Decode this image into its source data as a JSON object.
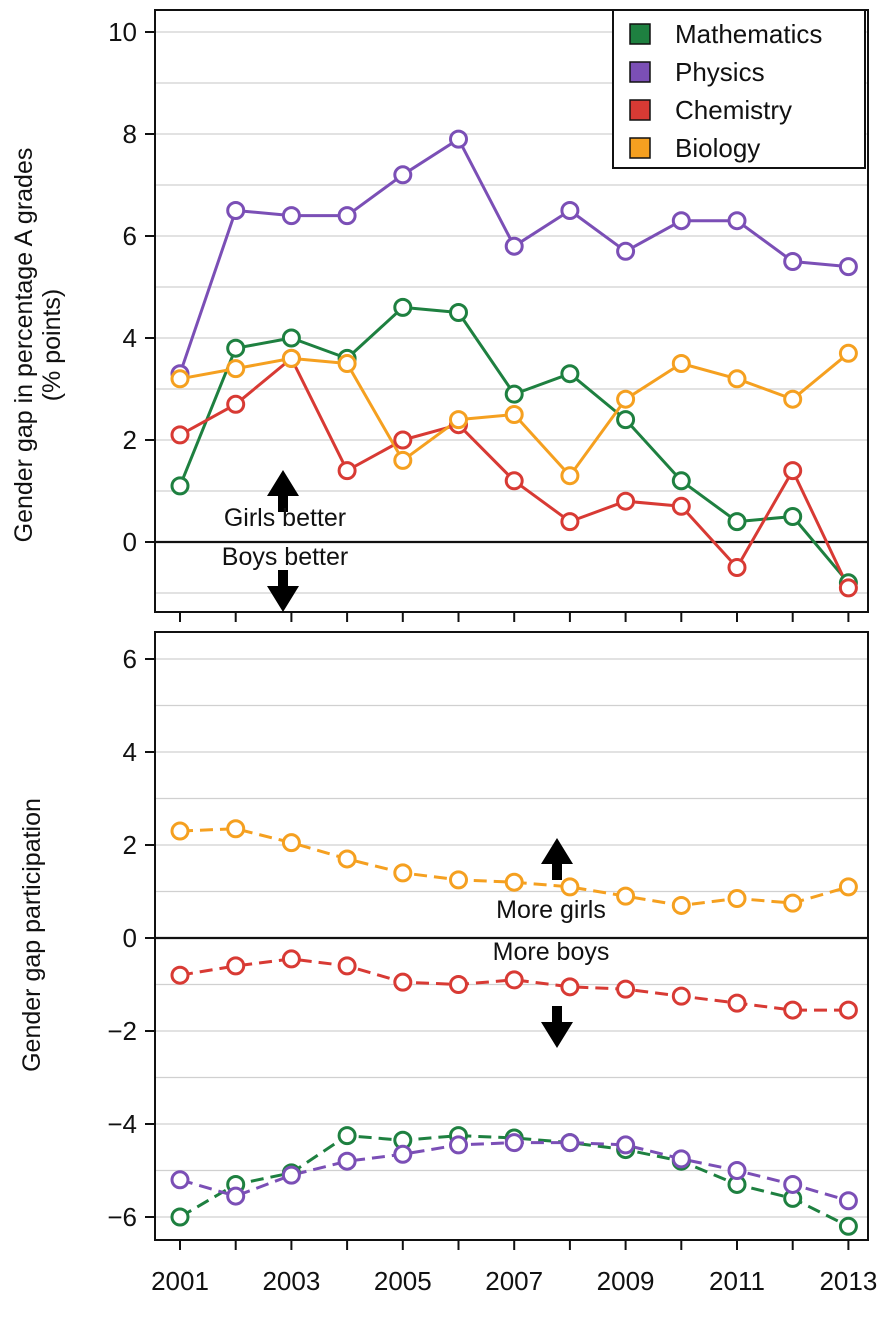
{
  "chart_data": [
    {
      "type": "line",
      "ylabel_lines": [
        "Gender gap in percentage A grades",
        "(% points)"
      ],
      "ylim": [
        -1.2,
        10.5
      ],
      "yticks": [
        0,
        2,
        4,
        6,
        8,
        10
      ],
      "ytick_labels": [
        "0",
        "2",
        "4",
        "6",
        "8",
        "10"
      ],
      "x": [
        2001,
        2002,
        2003,
        2004,
        2005,
        2006,
        2007,
        2008,
        2009,
        2010,
        2011,
        2012,
        2013
      ],
      "grid": true,
      "legend": {
        "placement": "top-right",
        "entries": [
          "Mathematics",
          "Physics",
          "Chemistry",
          "Biology"
        ]
      },
      "annotations": {
        "up": "Girls better",
        "down": "Boys better"
      },
      "series": [
        {
          "name": "Mathematics",
          "color": "#1e8040",
          "dashed": false,
          "values": [
            1.1,
            3.8,
            4.0,
            3.6,
            4.6,
            4.5,
            2.9,
            3.3,
            2.4,
            1.2,
            0.4,
            0.5,
            -0.8
          ]
        },
        {
          "name": "Physics",
          "color": "#7b4fb6",
          "dashed": false,
          "values": [
            3.3,
            6.5,
            6.4,
            6.4,
            7.2,
            7.9,
            5.8,
            6.5,
            5.7,
            6.3,
            6.3,
            5.5,
            5.4
          ]
        },
        {
          "name": "Chemistry",
          "color": "#d83a34",
          "dashed": false,
          "values": [
            2.1,
            2.7,
            3.6,
            1.4,
            2.0,
            2.3,
            1.2,
            0.4,
            0.8,
            0.7,
            -0.5,
            1.4,
            -0.9
          ]
        },
        {
          "name": "Biology",
          "color": "#f5a020",
          "dashed": false,
          "values": [
            3.2,
            3.4,
            3.6,
            3.5,
            1.6,
            2.4,
            2.5,
            1.3,
            2.8,
            3.5,
            3.2,
            2.8,
            3.7
          ]
        }
      ]
    },
    {
      "type": "line",
      "ylabel_lines": [
        "Gender gap participation"
      ],
      "ylim": [
        -6.5,
        6.6
      ],
      "yticks": [
        -6,
        -4,
        -2,
        0,
        2,
        4,
        6
      ],
      "ytick_labels": [
        "−6",
        "−4",
        "−2",
        "0",
        "2",
        "4",
        "6"
      ],
      "x": [
        2001,
        2002,
        2003,
        2004,
        2005,
        2006,
        2007,
        2008,
        2009,
        2010,
        2011,
        2012,
        2013
      ],
      "xtick_labels": [
        "2001",
        "2003",
        "2005",
        "2007",
        "2009",
        "2011",
        "2013"
      ],
      "grid": true,
      "annotations": {
        "up": "More girls",
        "down": "More boys"
      },
      "series": [
        {
          "name": "Mathematics",
          "color": "#1e8040",
          "dashed": true,
          "values": [
            -6.0,
            -5.3,
            -5.05,
            -4.25,
            -4.35,
            -4.25,
            -4.3,
            -4.4,
            -4.55,
            -4.8,
            -5.3,
            -5.6,
            -6.2
          ]
        },
        {
          "name": "Physics",
          "color": "#7b4fb6",
          "dashed": true,
          "values": [
            -5.2,
            -5.55,
            -5.1,
            -4.8,
            -4.65,
            -4.45,
            -4.4,
            -4.4,
            -4.45,
            -4.75,
            -5.0,
            -5.3,
            -5.65
          ]
        },
        {
          "name": "Chemistry",
          "color": "#d83a34",
          "dashed": true,
          "values": [
            -0.8,
            -0.6,
            -0.45,
            -0.6,
            -0.95,
            -1.0,
            -0.9,
            -1.05,
            -1.1,
            -1.25,
            -1.4,
            -1.55,
            -1.55
          ]
        },
        {
          "name": "Biology",
          "color": "#f5a020",
          "dashed": true,
          "values": [
            2.3,
            2.35,
            2.05,
            1.7,
            1.4,
            1.25,
            1.2,
            1.1,
            0.9,
            0.7,
            0.85,
            0.75,
            1.1
          ]
        }
      ]
    }
  ]
}
